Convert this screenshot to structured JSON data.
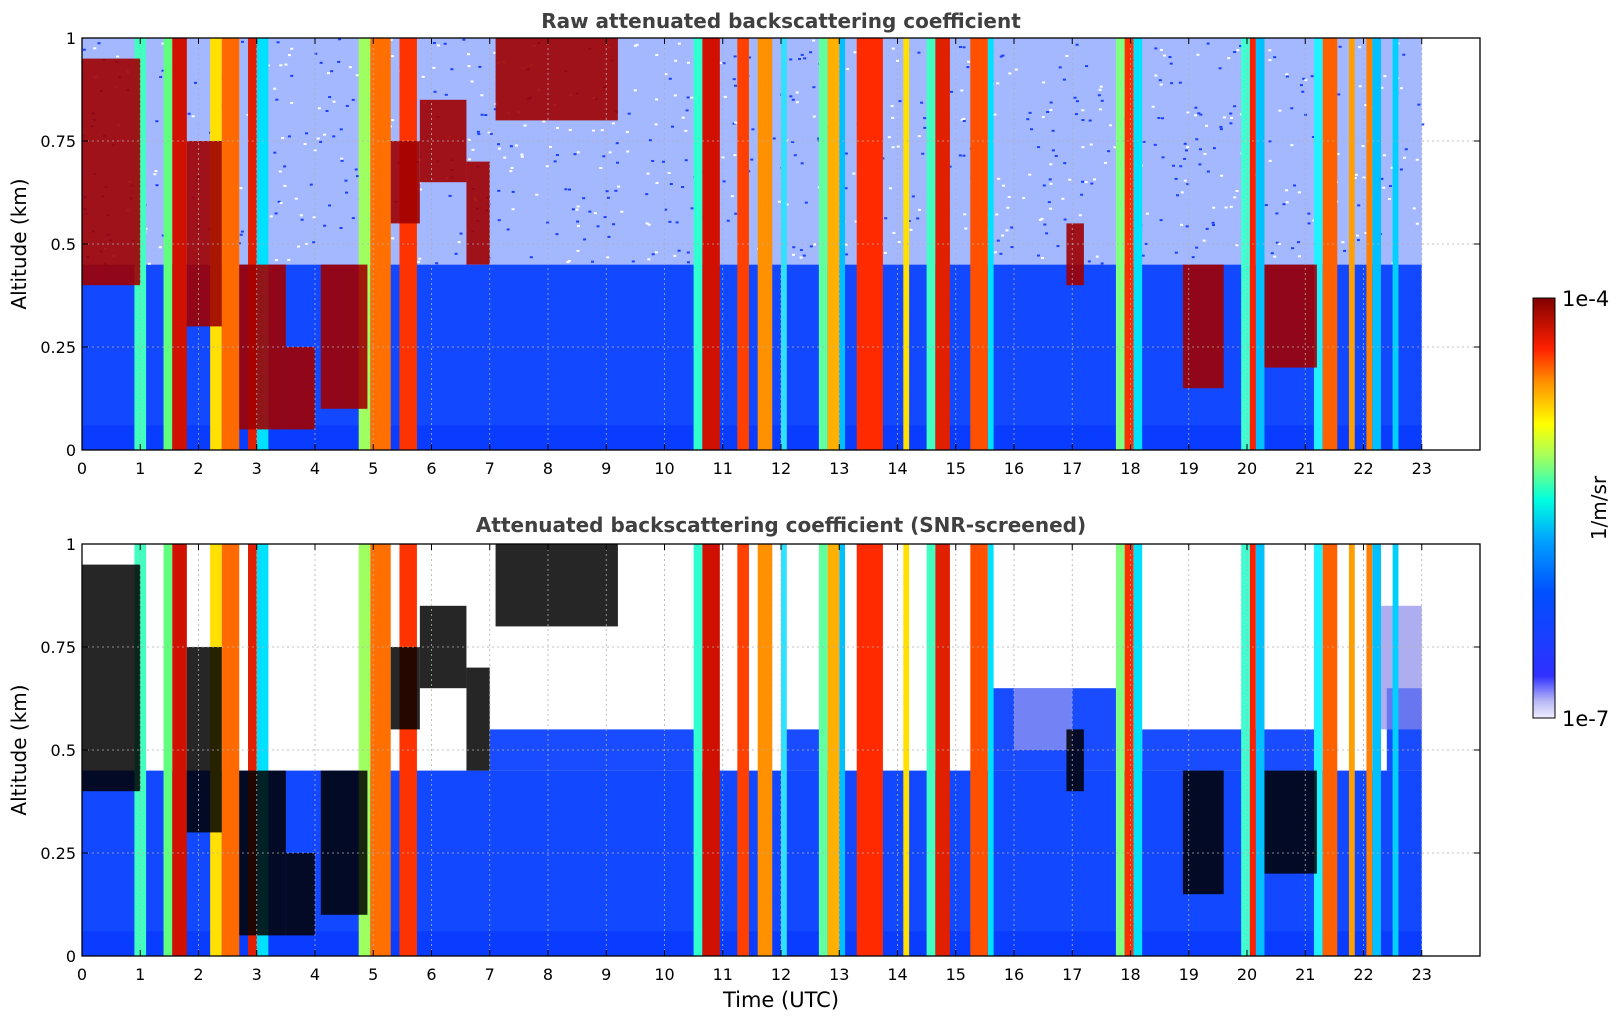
{
  "chart_data": [
    {
      "type": "heatmap",
      "title": "Raw attenuated backscattering coefficient",
      "ylabel": "Altitude (km)",
      "xlabel": "",
      "xlim": [
        0,
        24
      ],
      "ylim": [
        0,
        1
      ],
      "x_ticks": [
        "0",
        "1",
        "2",
        "3",
        "4",
        "5",
        "6",
        "7",
        "8",
        "9",
        "10",
        "11",
        "12",
        "13",
        "14",
        "15",
        "16",
        "17",
        "18",
        "19",
        "20",
        "21",
        "22",
        "23"
      ],
      "y_ticks": [
        "0",
        "0.25",
        "0.5",
        "0.75",
        "1"
      ],
      "grid": true,
      "data_end_hour": 23,
      "screened": false
    },
    {
      "type": "heatmap",
      "title": "Attenuated backscattering coefficient (SNR-screened)",
      "ylabel": "Altitude (km)",
      "xlabel": "Time (UTC)",
      "xlim": [
        0,
        24
      ],
      "ylim": [
        0,
        1
      ],
      "x_ticks": [
        "0",
        "1",
        "2",
        "3",
        "4",
        "5",
        "6",
        "7",
        "8",
        "9",
        "10",
        "11",
        "12",
        "13",
        "14",
        "15",
        "16",
        "17",
        "18",
        "19",
        "20",
        "21",
        "22",
        "23"
      ],
      "y_ticks": [
        "0",
        "0.25",
        "0.5",
        "0.75",
        "1"
      ],
      "grid": true,
      "data_end_hour": 23,
      "screened": true
    }
  ],
  "colorbar": {
    "label": "1/m/sr",
    "max_label": "1e-4",
    "min_label": "1e-7",
    "colormap": "jet"
  },
  "colors": {
    "background": "#ffffff",
    "title": "#404040",
    "grid": "#b0b0b0",
    "saturated": "#000000"
  }
}
